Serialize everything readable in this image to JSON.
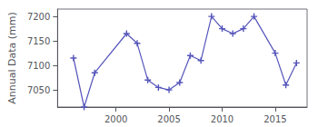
{
  "chart_data": {
    "type": "line",
    "ylabel": "Annual Data (mm)",
    "x": [
      1996,
      1997,
      1998,
      2001,
      2002,
      2003,
      2004,
      2005,
      2006,
      2007,
      2008,
      2009,
      2010,
      2011,
      2012,
      2013,
      2015,
      2016,
      2017
    ],
    "values": [
      7115,
      7015,
      7085,
      7165,
      7145,
      7070,
      7055,
      7050,
      7065,
      7120,
      7110,
      7200,
      7175,
      7165,
      7175,
      7200,
      7125,
      7060,
      7105
    ],
    "color": "#5555bb",
    "marker": "plus",
    "xlim": [
      1994.5,
      2018
    ],
    "ylim": [
      7015,
      7215
    ],
    "xticks": [
      2000,
      2005,
      2010,
      2015
    ],
    "yticks": [
      7050,
      7100,
      7150,
      7200
    ],
    "grid": false
  }
}
